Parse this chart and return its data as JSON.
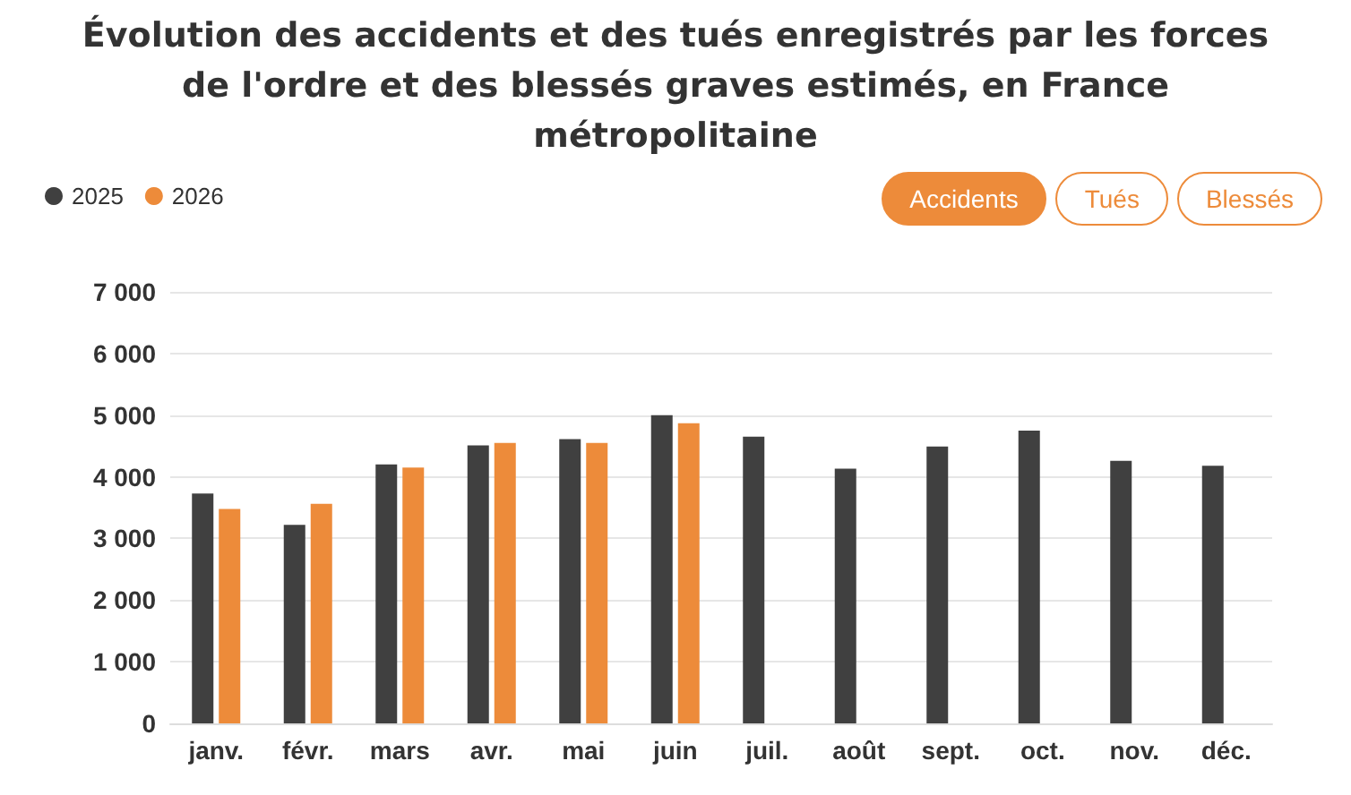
{
  "chart_data": {
    "type": "bar",
    "title": "Évolution des accidents et des tués enregistrés par les forces de l'ordre et des blessés graves estimés, en France métropolitaine",
    "categories": [
      "janv.",
      "févr.",
      "mars",
      "avr.",
      "mai",
      "juin",
      "juil.",
      "août",
      "sept.",
      "oct.",
      "nov.",
      "déc."
    ],
    "series": [
      {
        "name": "2025",
        "color": "#404040",
        "values": [
          3730,
          3220,
          4200,
          4510,
          4610,
          5000,
          4650,
          4130,
          4490,
          4750,
          4260,
          4180
        ]
      },
      {
        "name": "2026",
        "color": "#ed8b3a",
        "values": [
          3480,
          3560,
          4150,
          4550,
          4550,
          4870,
          null,
          null,
          null,
          null,
          null,
          null
        ]
      }
    ],
    "ylim": [
      0,
      7000
    ],
    "yticks": [
      0,
      {
        "value": 1000,
        "label": "1 000"
      },
      {
        "value": 2000,
        "label": "2 000"
      },
      {
        "value": 3000,
        "label": "3 000"
      },
      {
        "value": 4000,
        "label": "4 000"
      },
      {
        "value": 5000,
        "label": "5 000"
      },
      {
        "value": 6000,
        "label": "6 000"
      },
      {
        "value": 7000,
        "label": "7 000"
      }
    ],
    "grid": "y",
    "legend": "top left",
    "annotations": [
      "Accidents",
      "Tués",
      "Blessés"
    ]
  }
}
